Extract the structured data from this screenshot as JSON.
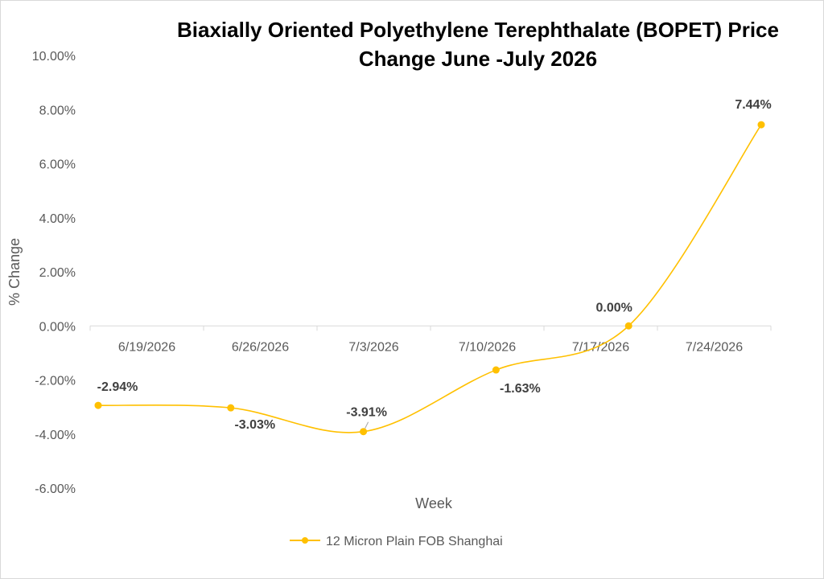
{
  "chart_data": {
    "type": "line",
    "title_line1": "Biaxially Oriented Polyethylene Terephthalate (BOPET) Price",
    "title_line2": "Change June -July 2026",
    "xlabel": "Week",
    "ylabel": "% Change",
    "categories": [
      "6/19/2026",
      "6/26/2026",
      "7/3/2026",
      "7/10/2026",
      "7/17/2026",
      "7/24/2026"
    ],
    "y_ticks": [
      "10.00%",
      "8.00%",
      "6.00%",
      "4.00%",
      "2.00%",
      "0.00%",
      "-2.00%",
      "-4.00%",
      "-6.00%"
    ],
    "ylim": [
      -0.06,
      0.1
    ],
    "grid": false,
    "legend_position": "bottom",
    "series": [
      {
        "name": "12 Micron Plain FOB Shanghai",
        "values": [
          -0.0294,
          -0.0303,
          -0.0391,
          -0.0163,
          0.0,
          0.0744
        ],
        "labels": [
          "-2.94%",
          "-3.03%",
          "-3.91%",
          "-1.63%",
          "0.00%",
          "7.44%"
        ],
        "color": "#FFC000"
      }
    ]
  }
}
